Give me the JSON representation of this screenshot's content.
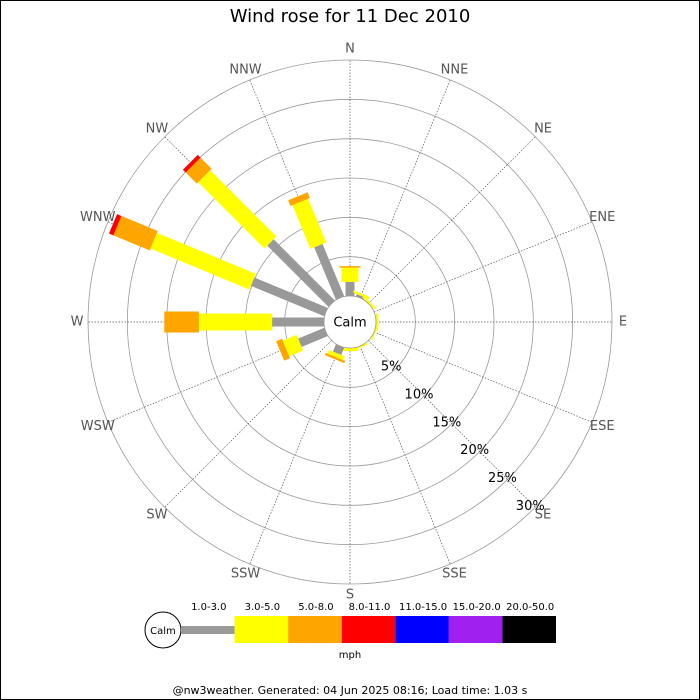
{
  "chart_data": {
    "type": "windrose",
    "title": "Wind rose for 11 Dec 2010",
    "categories": [
      "N",
      "NNE",
      "NE",
      "ENE",
      "E",
      "ESE",
      "SE",
      "SSE",
      "S",
      "SSW",
      "SW",
      "WSW",
      "W",
      "WNW",
      "NW",
      "NNW"
    ],
    "calm_label": "Calm",
    "series": [
      {
        "name": "1.0-3.0",
        "color": "#999999",
        "values": [
          1.8,
          0.3,
          0,
          0,
          0,
          0,
          0,
          0,
          0,
          1.0,
          0,
          3.6,
          6.6,
          10.1,
          11.0,
          7.2
        ]
      },
      {
        "name": "3.0-5.0",
        "color": "#ffff00",
        "values": [
          1.8,
          0.3,
          0.3,
          0,
          0.3,
          0.2,
          0,
          0.2,
          0.4,
          0.5,
          0,
          1.9,
          9.3,
          13.6,
          11.9,
          6.0
        ]
      },
      {
        "name": "5.0-8.0",
        "color": "#ffa500",
        "values": [
          0.2,
          0,
          0,
          0,
          0,
          0,
          0,
          0,
          0,
          0.3,
          0,
          0.8,
          4.4,
          5.0,
          2.0,
          0.8
        ]
      },
      {
        "name": "8.0-11.0",
        "color": "#ff0000",
        "values": [
          0,
          0,
          0,
          0,
          0,
          0,
          0,
          0,
          0,
          0,
          0,
          0,
          0,
          0.6,
          0.5,
          0
        ]
      },
      {
        "name": "11.0-15.0",
        "color": "#0000ff",
        "values": [
          0,
          0,
          0,
          0,
          0,
          0,
          0,
          0,
          0,
          0,
          0,
          0,
          0,
          0,
          0,
          0
        ]
      },
      {
        "name": "15.0-20.0",
        "color": "#a020f0",
        "values": [
          0,
          0,
          0,
          0,
          0,
          0,
          0,
          0,
          0,
          0,
          0,
          0,
          0,
          0,
          0,
          0
        ]
      },
      {
        "name": "20.0-50.0",
        "color": "#000000",
        "values": [
          0,
          0,
          0,
          0,
          0,
          0,
          0,
          0,
          0,
          0,
          0,
          0,
          0,
          0,
          0,
          0
        ]
      }
    ],
    "rlim": [
      0,
      30
    ],
    "rticks": [
      {
        "value": 5,
        "label": "5%"
      },
      {
        "value": 10,
        "label": "10%"
      },
      {
        "value": 15,
        "label": "15%"
      },
      {
        "value": 20,
        "label": "20%"
      },
      {
        "value": 25,
        "label": "25%"
      },
      {
        "value": 30,
        "label": "30%"
      }
    ],
    "legend_unit": "mph",
    "footer": "@nw3weather. Generated: 04 Jun 2025 08:16; Load time: 1.03 s"
  }
}
